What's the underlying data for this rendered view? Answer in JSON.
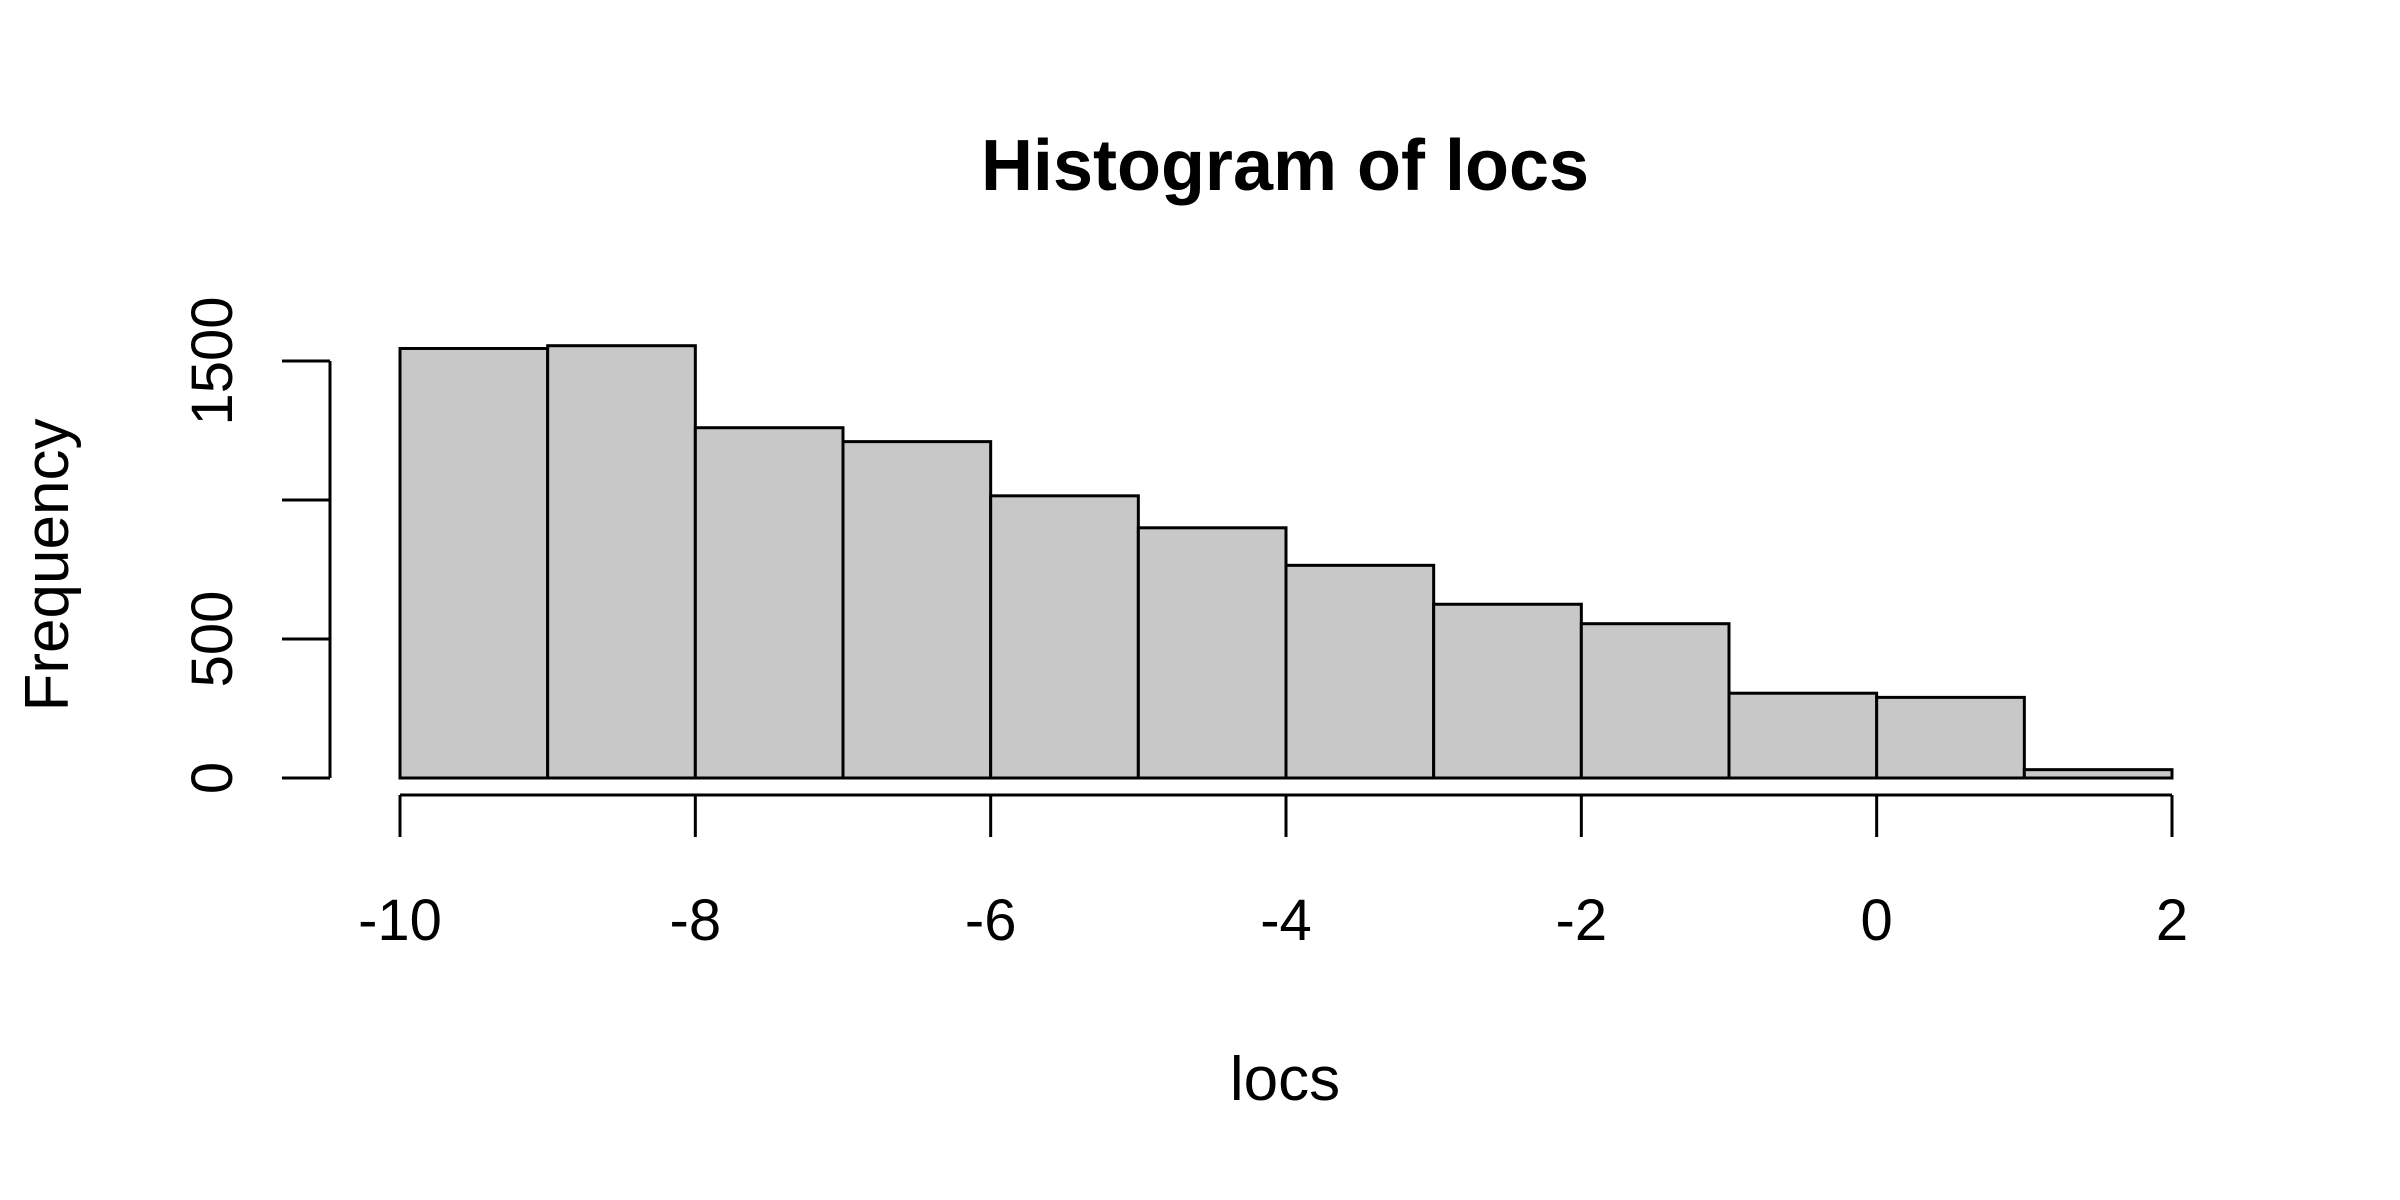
{
  "chart_data": {
    "type": "bar",
    "title": "Histogram of locs",
    "xlabel": "locs",
    "ylabel": "Frequency",
    "xlim": [
      -10,
      2
    ],
    "ylim": [
      0,
      1500
    ],
    "x_ticks": [
      -10,
      -8,
      -6,
      -4,
      -2,
      0,
      2
    ],
    "y_ticks": [
      0,
      500,
      1500
    ],
    "y_tick_marks": [
      0,
      500,
      1000,
      1500
    ],
    "bins": [
      {
        "start": -10,
        "end": -9,
        "value": 1545
      },
      {
        "start": -9,
        "end": -8,
        "value": 1555
      },
      {
        "start": -8,
        "end": -7,
        "value": 1260
      },
      {
        "start": -7,
        "end": -6,
        "value": 1210
      },
      {
        "start": -6,
        "end": -5,
        "value": 1015
      },
      {
        "start": -5,
        "end": -4,
        "value": 900
      },
      {
        "start": -4,
        "end": -3,
        "value": 765
      },
      {
        "start": -3,
        "end": -2,
        "value": 625
      },
      {
        "start": -2,
        "end": -1,
        "value": 555
      },
      {
        "start": -1,
        "end": 0,
        "value": 305
      },
      {
        "start": 0,
        "end": 1,
        "value": 290
      },
      {
        "start": 1,
        "end": 2,
        "value": 30
      }
    ],
    "grid": false,
    "legend": "none",
    "bar_color": "#c8c8c8",
    "border_color": "#000000"
  }
}
